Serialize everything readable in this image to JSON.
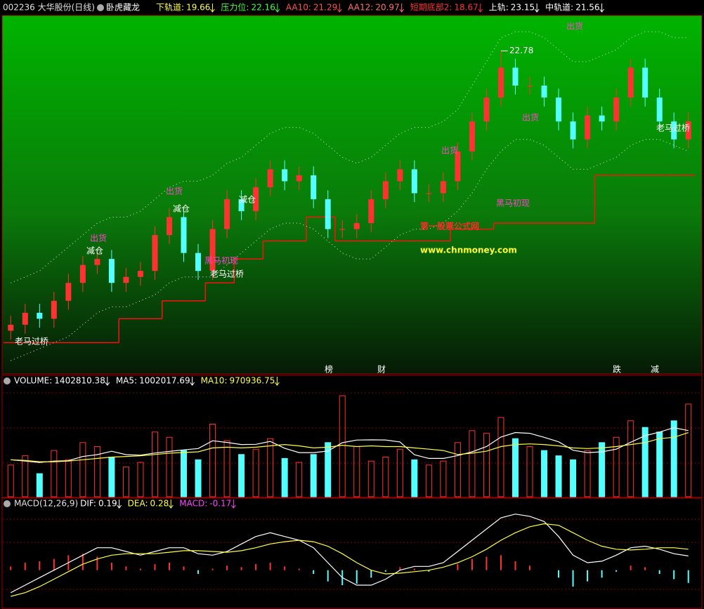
{
  "chart_data": [
    {
      "type": "candlestick",
      "title": "002236 大华股份(日线)",
      "subtitle": "卧虎藏龙",
      "indicators": [
        {
          "name": "下轨道:",
          "value": 19.66,
          "color": "#ffff40"
        },
        {
          "name": "压力位:",
          "value": 22.16,
          "color": "#40ff40"
        },
        {
          "name": "AA10:",
          "value": 21.29,
          "color": "#ff5050"
        },
        {
          "name": "AA12:",
          "value": 20.97,
          "color": "#ff7070"
        },
        {
          "name": "短期底部2:",
          "value": 18.67,
          "color": "#ff3030"
        },
        {
          "name": "上轨:",
          "value": 23.15,
          "color": "#ffffff"
        },
        {
          "name": "中轨道:",
          "value": 21.56,
          "color": "#ffffff"
        }
      ],
      "open": [
        18.1,
        18.2,
        18.4,
        18.3,
        18.6,
        18.9,
        19.2,
        19.3,
        18.9,
        19.0,
        19.1,
        19.7,
        20.0,
        19.4,
        19.1,
        19.8,
        20.3,
        20.1,
        20.5,
        20.8,
        20.6,
        20.7,
        20.3,
        19.8,
        19.8,
        19.9,
        20.3,
        20.6,
        20.8,
        20.4,
        20.4,
        20.6,
        21.1,
        21.6,
        22.0,
        22.5,
        22.2,
        22.2,
        22.0,
        21.6,
        21.3,
        21.7,
        21.6,
        22.0,
        22.5,
        22.0,
        21.6,
        21.3
      ],
      "high": [
        18.35,
        18.55,
        18.55,
        18.75,
        19.05,
        19.35,
        19.45,
        19.45,
        19.15,
        19.25,
        19.85,
        20.15,
        20.15,
        19.55,
        19.95,
        20.45,
        20.45,
        20.65,
        20.95,
        20.95,
        20.85,
        20.85,
        20.45,
        19.95,
        20.05,
        20.45,
        20.75,
        20.95,
        20.95,
        20.55,
        20.75,
        21.25,
        21.75,
        22.15,
        22.78,
        22.65,
        22.35,
        22.35,
        22.15,
        21.75,
        21.85,
        21.85,
        22.15,
        22.65,
        22.65,
        22.15,
        21.75,
        21.75
      ],
      "low": [
        17.95,
        18.05,
        18.15,
        18.15,
        18.45,
        18.75,
        19.05,
        18.75,
        18.75,
        18.85,
        18.95,
        19.55,
        19.25,
        18.95,
        18.95,
        19.65,
        19.95,
        19.95,
        20.35,
        20.45,
        20.45,
        20.15,
        19.65,
        19.65,
        19.65,
        19.75,
        20.15,
        20.45,
        20.25,
        20.25,
        20.25,
        20.45,
        20.95,
        21.45,
        21.85,
        22.05,
        22.05,
        21.85,
        21.45,
        21.15,
        21.15,
        21.45,
        21.45,
        21.85,
        21.85,
        21.45,
        21.15,
        21.15
      ],
      "close": [
        18.2,
        18.4,
        18.3,
        18.6,
        18.9,
        19.2,
        19.3,
        18.9,
        19.0,
        19.1,
        19.7,
        20.0,
        19.4,
        19.1,
        19.8,
        20.3,
        20.1,
        20.5,
        20.8,
        20.6,
        20.7,
        20.3,
        19.8,
        19.8,
        19.9,
        20.3,
        20.6,
        20.8,
        20.4,
        20.4,
        20.6,
        21.1,
        21.6,
        22.0,
        22.5,
        22.2,
        22.2,
        22.0,
        21.6,
        21.3,
        21.7,
        21.6,
        22.0,
        22.5,
        22.0,
        21.6,
        21.3,
        21.6
      ],
      "lines": [
        {
          "color": "#ff1010",
          "style": "step",
          "values": [
            17.9,
            17.9,
            17.9,
            17.9,
            17.9,
            17.9,
            17.9,
            17.9,
            18.3,
            18.3,
            18.3,
            18.6,
            18.6,
            18.6,
            18.9,
            18.9,
            19.3,
            19.3,
            19.6,
            19.6,
            19.6,
            20.0,
            20.0,
            19.6,
            19.6,
            19.6,
            19.6,
            19.6,
            19.6,
            19.6,
            19.6,
            19.8,
            19.8,
            19.8,
            19.9,
            19.9,
            19.9,
            19.9,
            19.9,
            19.9,
            19.9,
            20.7,
            20.7,
            20.7,
            20.7,
            20.7,
            20.7,
            20.7
          ]
        },
        {
          "color": "#e0e0e0",
          "style": "dotted",
          "values": [
            18.9,
            19.0,
            19.1,
            19.3,
            19.5,
            19.7,
            19.9,
            20.0,
            20.0,
            20.1,
            20.3,
            20.5,
            20.6,
            20.6,
            20.7,
            20.9,
            21.0,
            21.2,
            21.4,
            21.5,
            21.5,
            21.4,
            21.2,
            21.0,
            20.9,
            21.0,
            21.2,
            21.4,
            21.5,
            21.5,
            21.6,
            21.8,
            22.2,
            22.6,
            23.0,
            23.1,
            23.1,
            23.0,
            22.8,
            22.6,
            22.6,
            22.7,
            22.8,
            23.0,
            23.1,
            23.1,
            23.0,
            23.0
          ]
        },
        {
          "color": "#e0e0e0",
          "style": "dotted",
          "values": [
            17.6,
            17.7,
            17.8,
            17.9,
            18.0,
            18.2,
            18.4,
            18.5,
            18.5,
            18.6,
            18.7,
            18.9,
            19.0,
            19.0,
            19.0,
            19.2,
            19.4,
            19.6,
            19.8,
            19.9,
            19.9,
            19.8,
            19.6,
            19.4,
            19.3,
            19.3,
            19.5,
            19.7,
            19.8,
            19.8,
            19.9,
            20.1,
            20.4,
            20.8,
            21.1,
            21.3,
            21.3,
            21.2,
            21.0,
            20.8,
            20.8,
            20.9,
            21.0,
            21.2,
            21.3,
            21.3,
            21.2,
            21.1
          ]
        }
      ],
      "annotations": [
        "出货",
        "出货",
        "出货",
        "出货",
        "出货",
        "减仓",
        "减仓",
        "减仓",
        "黑马初现",
        "黑马初现",
        "老马过桥",
        "老马过桥",
        "老马过桥"
      ],
      "events": [
        "榜",
        "财",
        "跌",
        "减"
      ],
      "watermark": [
        "第一股票公式网",
        "www.chnmoney.com"
      ],
      "ylim": [
        17.4,
        23.35
      ]
    },
    {
      "type": "bar",
      "title": "",
      "indicators": [
        {
          "name": "VOLUME:",
          "value": 1402810.38,
          "color": "#ffffff"
        },
        {
          "name": "MA5:",
          "value": 1002017.69,
          "color": "#ffffff"
        },
        {
          "name": "MA10:",
          "value": 970936.75,
          "color": "#ffff40"
        }
      ],
      "values": [
        480000,
        620000,
        350000,
        700000,
        560000,
        820000,
        760000,
        600000,
        450000,
        520000,
        980000,
        900000,
        700000,
        560000,
        1100000,
        850000,
        640000,
        720000,
        880000,
        580000,
        520000,
        640000,
        820000,
        1530000,
        760000,
        540000,
        600000,
        720000,
        560000,
        480000,
        540000,
        820000,
        1000000,
        960000,
        1200000,
        880000,
        760000,
        700000,
        620000,
        560000,
        700000,
        820000,
        900000,
        1150000,
        1050000,
        980000,
        1150000,
        1402810.38
      ],
      "lines": [
        {
          "color": "#ffffff",
          "values": [
            560000,
            540000,
            520000,
            540000,
            546000,
            610000,
            638000,
            688000,
            638000,
            630000,
            662000,
            686000,
            710000,
            730000,
            848000,
            822000,
            790000,
            794000,
            838000,
            734000,
            668000,
            668000,
            692000,
            818000,
            858000,
            862000,
            860000,
            830000,
            636000,
            580000,
            580000,
            624000,
            680000,
            760000,
            904000,
            972000,
            960000,
            900000,
            832000,
            704000,
            668000,
            680000,
            720000,
            826000,
            924000,
            980000,
            1046000,
            1002017.69
          ]
        },
        {
          "color": "#ffff40",
          "values": [
            560000,
            550000,
            530000,
            530000,
            540000,
            560000,
            580000,
            600000,
            610000,
            620000,
            640000,
            660000,
            670000,
            680000,
            740000,
            750000,
            740000,
            750000,
            770000,
            790000,
            770000,
            740000,
            750000,
            780000,
            760000,
            770000,
            760000,
            760000,
            740000,
            720000,
            700000,
            640000,
            660000,
            690000,
            760000,
            790000,
            800000,
            790000,
            770000,
            740000,
            730000,
            740000,
            760000,
            790000,
            820000,
            880000,
            900000,
            970936.75
          ]
        }
      ],
      "ylim": [
        0,
        1700000
      ]
    },
    {
      "type": "macd",
      "title": "MACD(12,26,9)",
      "indicators": [
        {
          "name": "DIF:",
          "value": 0.19,
          "color": "#ffffff"
        },
        {
          "name": "DEA:",
          "value": 0.28,
          "color": "#ffff40"
        },
        {
          "name": "MACD:",
          "value": -0.17,
          "color": "#ff40ff"
        }
      ],
      "values": [
        0.05,
        0.1,
        0.12,
        0.15,
        0.2,
        0.22,
        0.18,
        0.1,
        0.05,
        0.02,
        0.08,
        0.1,
        0.05,
        -0.05,
        0.02,
        0.06,
        0.04,
        0.08,
        0.1,
        0.05,
        0.02,
        -0.05,
        -0.15,
        -0.2,
        -0.18,
        -0.1,
        -0.02,
        0.04,
        0.02,
        -0.02,
        0.0,
        0.08,
        0.15,
        0.18,
        0.2,
        0.12,
        0.06,
        0.0,
        -0.1,
        -0.22,
        -0.15,
        -0.1,
        -0.02,
        0.06,
        0.04,
        -0.05,
        -0.12,
        -0.17
      ],
      "lines": [
        {
          "color": "#ffffff",
          "values": [
            -0.3,
            -0.2,
            -0.1,
            0.0,
            0.1,
            0.2,
            0.3,
            0.3,
            0.25,
            0.2,
            0.25,
            0.3,
            0.3,
            0.22,
            0.2,
            0.25,
            0.35,
            0.45,
            0.5,
            0.45,
            0.4,
            0.3,
            0.1,
            -0.1,
            -0.2,
            -0.2,
            -0.12,
            0.0,
            0.05,
            0.05,
            0.1,
            0.25,
            0.4,
            0.55,
            0.7,
            0.75,
            0.72,
            0.65,
            0.45,
            0.2,
            0.1,
            0.12,
            0.2,
            0.3,
            0.32,
            0.28,
            0.22,
            0.19
          ]
        },
        {
          "color": "#ffff40",
          "values": [
            -0.35,
            -0.3,
            -0.22,
            -0.12,
            -0.02,
            0.08,
            0.15,
            0.2,
            0.22,
            0.22,
            0.22,
            0.24,
            0.26,
            0.26,
            0.25,
            0.24,
            0.26,
            0.3,
            0.35,
            0.38,
            0.4,
            0.38,
            0.32,
            0.22,
            0.1,
            0.0,
            -0.05,
            -0.04,
            -0.02,
            0.0,
            0.04,
            0.1,
            0.18,
            0.28,
            0.4,
            0.5,
            0.58,
            0.62,
            0.6,
            0.5,
            0.4,
            0.32,
            0.28,
            0.27,
            0.28,
            0.3,
            0.3,
            0.28
          ]
        }
      ],
      "ylim": [
        -0.5,
        0.85
      ]
    }
  ]
}
